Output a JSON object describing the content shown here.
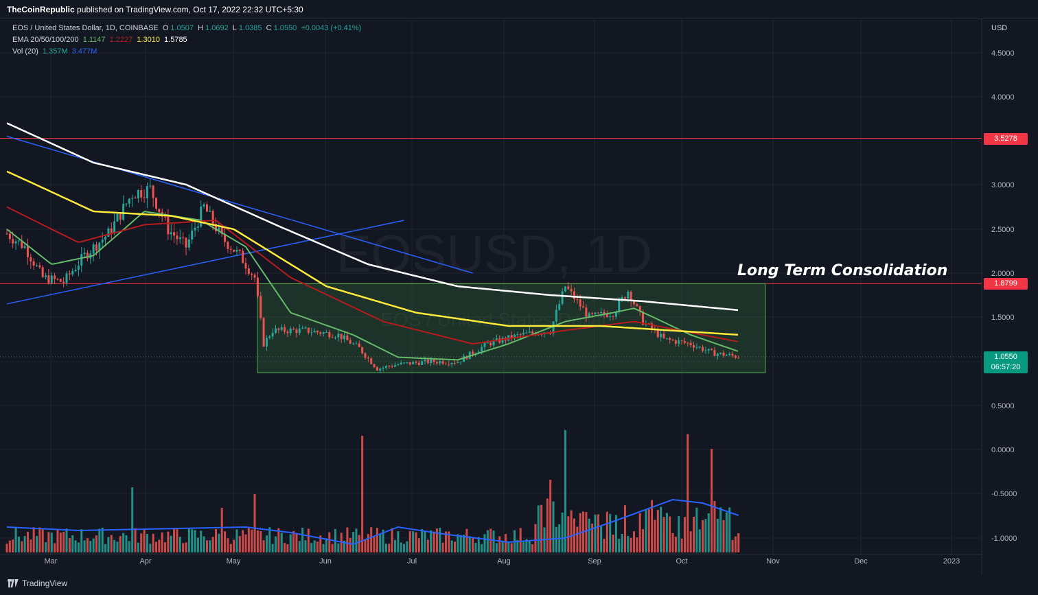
{
  "publisher": {
    "name": "TheCoinRepublic",
    "text": "published on TradingView.com, Oct 17, 2022 22:32 UTC+5:30"
  },
  "legend": {
    "symbol": "EOS / United States Dollar, 1D, COINBASE",
    "o_label": "O",
    "o": "1.0507",
    "h_label": "H",
    "h": "1.0692",
    "l_label": "L",
    "l": "1.0385",
    "c_label": "C",
    "c": "1.0550",
    "change": "+0.0043 (+0.41%)",
    "ema_label": "EMA 20/50/100/200",
    "ema20": "1.1147",
    "ema50": "1.2227",
    "ema100": "1.3010",
    "ema200": "1.5785",
    "vol_label": "Vol (20)",
    "vol": "1.357M",
    "vol_ma": "3.477M"
  },
  "watermark": {
    "big": "EOSUSD, 1D",
    "small": "EOS / United States Dollar"
  },
  "annotation": "Long Term Consolidation",
  "currency": "USD",
  "tags": {
    "resistance": "3.5278",
    "support": "1.8799",
    "last": "1.0550",
    "countdown": "06:57:20"
  },
  "brand": "TradingView",
  "colors": {
    "up": "#26a69a",
    "down": "#ef5350",
    "ema20": "#66bb6a",
    "ema50": "#b71c1c",
    "ema100": "#ffeb3b",
    "ema200": "#ffffff",
    "trend": "#2962ff",
    "hline": "#f23645",
    "box": "#4caf50",
    "volma": "#2962ff"
  },
  "chart_data": {
    "type": "candlestick",
    "y_axis_ticks": [
      "4.5000",
      "4.0000",
      "3.0000",
      "2.5000",
      "2.0000",
      "1.5000",
      "0.5000",
      "0.0000",
      "-0.5000",
      "-1.0000"
    ],
    "x_axis_ticks": [
      "Mar",
      "Apr",
      "May",
      "Jun",
      "Jul",
      "Aug",
      "Sep",
      "Oct",
      "Nov",
      "Dec",
      "2023"
    ],
    "price_path": [
      [
        "2022-02-14",
        2.45
      ],
      [
        "2022-02-20",
        2.3
      ],
      [
        "2022-02-26",
        1.95
      ],
      [
        "2022-03-05",
        1.9
      ],
      [
        "2022-03-12",
        2.2
      ],
      [
        "2022-03-20",
        2.45
      ],
      [
        "2022-03-28",
        2.9
      ],
      [
        "2022-04-03",
        2.95
      ],
      [
        "2022-04-09",
        2.5
      ],
      [
        "2022-04-15",
        2.3
      ],
      [
        "2022-04-21",
        2.75
      ],
      [
        "2022-04-27",
        2.4
      ],
      [
        "2022-05-03",
        2.2
      ],
      [
        "2022-05-08",
        1.95
      ],
      [
        "2022-05-11",
        1.2
      ],
      [
        "2022-05-14",
        1.35
      ],
      [
        "2022-05-25",
        1.35
      ],
      [
        "2022-06-05",
        1.3
      ],
      [
        "2022-06-12",
        1.15
      ],
      [
        "2022-06-18",
        0.92
      ],
      [
        "2022-06-25",
        0.97
      ],
      [
        "2022-07-05",
        1.0
      ],
      [
        "2022-07-15",
        1.0
      ],
      [
        "2022-07-25",
        1.2
      ],
      [
        "2022-08-05",
        1.3
      ],
      [
        "2022-08-15",
        1.35
      ],
      [
        "2022-08-20",
        1.85
      ],
      [
        "2022-08-28",
        1.5
      ],
      [
        "2022-09-05",
        1.55
      ],
      [
        "2022-09-10",
        1.8
      ],
      [
        "2022-09-15",
        1.45
      ],
      [
        "2022-09-22",
        1.25
      ],
      [
        "2022-10-01",
        1.2
      ],
      [
        "2022-10-08",
        1.1
      ],
      [
        "2022-10-17",
        1.055
      ]
    ],
    "ema20_path": [
      [
        "2022-02-14",
        2.5
      ],
      [
        "2022-03-01",
        2.1
      ],
      [
        "2022-03-15",
        2.2
      ],
      [
        "2022-04-01",
        2.7
      ],
      [
        "2022-04-20",
        2.6
      ],
      [
        "2022-05-05",
        2.3
      ],
      [
        "2022-05-20",
        1.55
      ],
      [
        "2022-06-10",
        1.3
      ],
      [
        "2022-06-25",
        1.05
      ],
      [
        "2022-07-15",
        1.02
      ],
      [
        "2022-08-01",
        1.2
      ],
      [
        "2022-08-20",
        1.45
      ],
      [
        "2022-09-05",
        1.55
      ],
      [
        "2022-09-12",
        1.6
      ],
      [
        "2022-10-01",
        1.3
      ],
      [
        "2022-10-17",
        1.1147
      ]
    ],
    "ema50_path": [
      [
        "2022-02-14",
        2.75
      ],
      [
        "2022-03-10",
        2.35
      ],
      [
        "2022-04-01",
        2.55
      ],
      [
        "2022-04-25",
        2.6
      ],
      [
        "2022-05-20",
        1.95
      ],
      [
        "2022-06-20",
        1.45
      ],
      [
        "2022-07-20",
        1.2
      ],
      [
        "2022-08-20",
        1.35
      ],
      [
        "2022-09-12",
        1.45
      ],
      [
        "2022-10-17",
        1.2227
      ]
    ],
    "ema100_path": [
      [
        "2022-02-14",
        3.15
      ],
      [
        "2022-03-15",
        2.7
      ],
      [
        "2022-04-10",
        2.65
      ],
      [
        "2022-05-01",
        2.5
      ],
      [
        "2022-06-01",
        1.85
      ],
      [
        "2022-07-01",
        1.55
      ],
      [
        "2022-08-01",
        1.4
      ],
      [
        "2022-09-01",
        1.4
      ],
      [
        "2022-10-17",
        1.301
      ]
    ],
    "ema200_path": [
      [
        "2022-02-14",
        3.7
      ],
      [
        "2022-03-15",
        3.25
      ],
      [
        "2022-04-15",
        3.0
      ],
      [
        "2022-05-15",
        2.55
      ],
      [
        "2022-06-15",
        2.1
      ],
      [
        "2022-07-15",
        1.85
      ],
      [
        "2022-08-15",
        1.75
      ],
      [
        "2022-09-15",
        1.68
      ],
      [
        "2022-10-17",
        1.5785
      ]
    ],
    "levels": [
      3.5278,
      1.8799
    ],
    "consolidation_box": {
      "from": "2022-05-10",
      "to": "2022-10-26",
      "top": 1.8799,
      "bottom": 0.875
    },
    "trendlines": [
      {
        "from": [
          "2022-02-14",
          3.55
        ],
        "to": [
          "2022-07-20",
          2.0
        ]
      },
      {
        "from": [
          "2022-02-14",
          1.65
        ],
        "to": [
          "2022-06-27",
          2.6
        ]
      }
    ],
    "volume_note": "volume histogram with 20-period MA; last volume 1.357M, MA 3.477M"
  }
}
